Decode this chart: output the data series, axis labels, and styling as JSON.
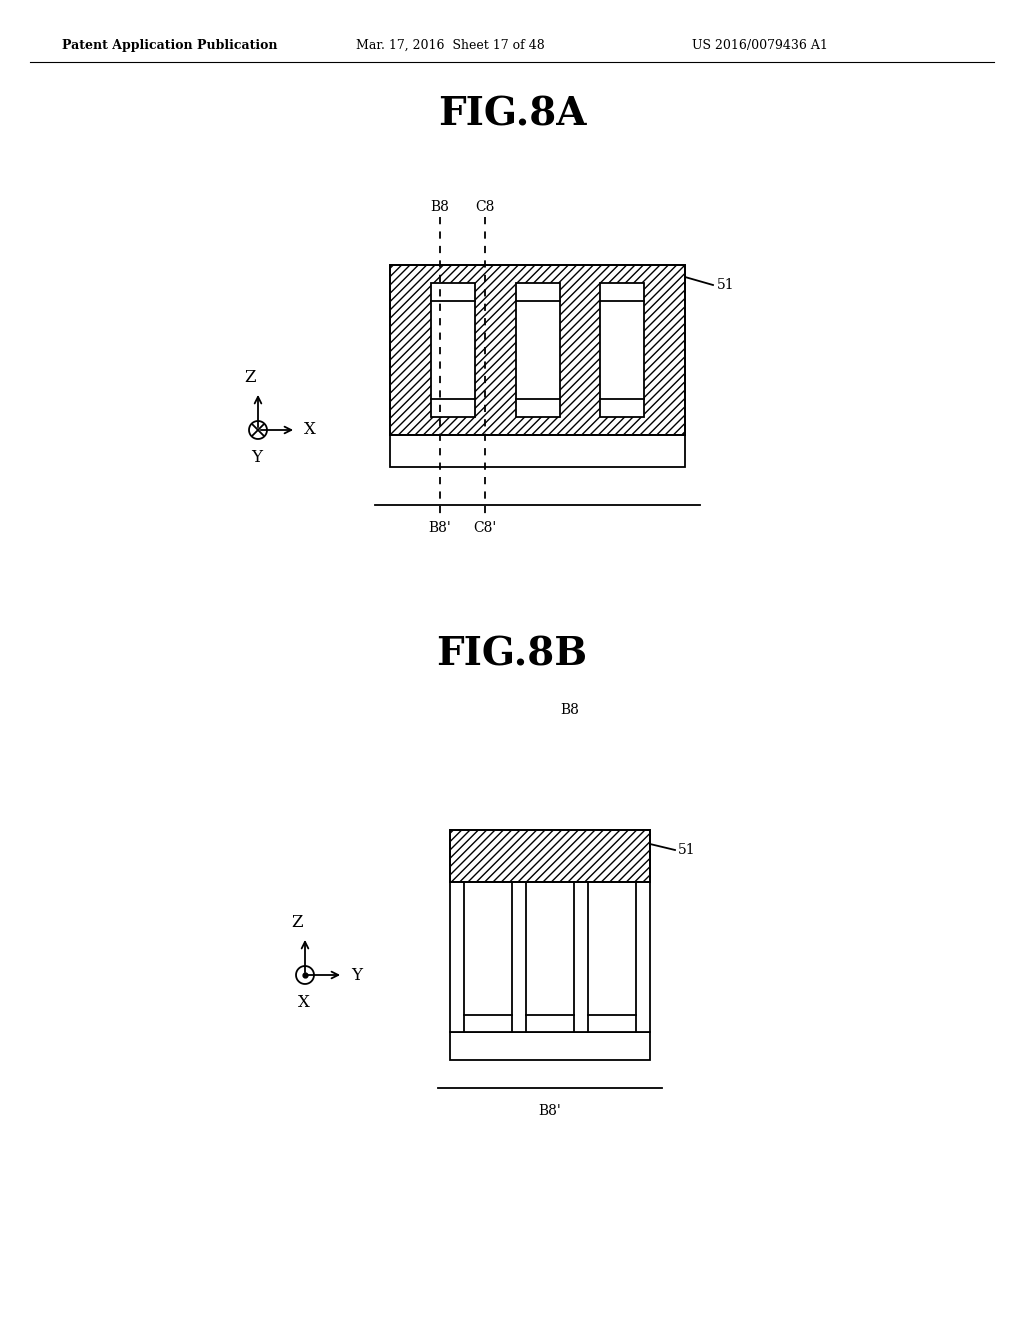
{
  "bg_color": "#ffffff",
  "header_left": "Patent Application Publication",
  "header_mid": "Mar. 17, 2016  Sheet 17 of 48",
  "header_right": "US 2016/0079436 A1",
  "fig8a_title": "FIG.8A",
  "fig8b_title": "FIG.8B",
  "label_51": "51",
  "label_B8": "B8",
  "label_C8": "C8",
  "label_B8p": "B8'",
  "label_C8p": "C8'",
  "label_B8_8b": "B8",
  "label_B8p_8b": "B8'",
  "line_color": "#000000",
  "bg_color2": "#ffffff"
}
